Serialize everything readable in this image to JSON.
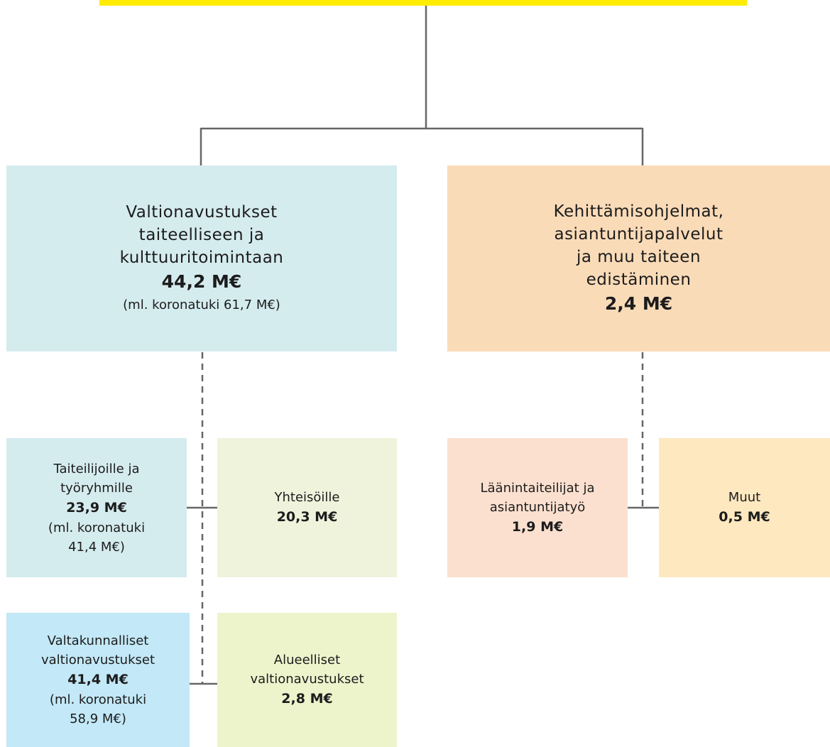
{
  "nodes": [
    {
      "lines": [
        "Valtionavustukset",
        "taiteelliseen ja",
        "kulttuuritoimintaan"
      ],
      "amount": "44,2 M€",
      "note": [
        "(ml. koronatuki 61,7 M€)"
      ]
    },
    {
      "lines": [
        "Kehittämisohjelmat,",
        "asiantuntijapalvelut",
        "ja muu taiteen",
        "edistäminen"
      ],
      "amount": "2,4 M€",
      "note": []
    },
    {
      "lines": [
        "Taiteilijoille ja",
        "työryhmille"
      ],
      "amount": "23,9 M€",
      "note": [
        "(ml. koronatuki",
        "41,4 M€)"
      ]
    },
    {
      "lines": [
        "Yhteisöille"
      ],
      "amount": "20,3 M€",
      "note": []
    },
    {
      "lines": [
        "Läänintaiteilijat ja",
        "asiantuntijatyö"
      ],
      "amount": "1,9 M€",
      "note": []
    },
    {
      "lines": [
        "Muut"
      ],
      "amount": "0,5 M€",
      "note": []
    },
    {
      "lines": [
        "Valtakunnalliset",
        "valtionavustukset"
      ],
      "amount": "41,4 M€",
      "note": [
        "(ml. koronatuki",
        "58,9 M€)"
      ]
    },
    {
      "lines": [
        "Alueelliset",
        "valtionavustukset"
      ],
      "amount": "2,8 M€",
      "note": []
    }
  ]
}
